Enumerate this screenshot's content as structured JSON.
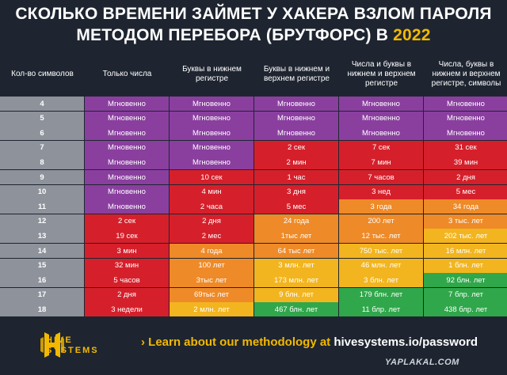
{
  "title": {
    "line1": "СКОЛЬКО ВРЕМЕНИ ЗАЙМЕТ У ХАКЕРА ВЗЛОМ ПАРОЛЯ",
    "line2_prefix": "МЕТОДОМ ПЕРЕБОРА (БРУТФОРС) В ",
    "year": "2022"
  },
  "headers": [
    "Кол-во символов",
    "Только числа",
    "Буквы в нижнем регистре",
    "Буквы в нижнем и верхнем регистре",
    "Числа и буквы в нижнем и верхнем регистре",
    "Числа, буквы в нижнем и верхнем регистре, символы"
  ],
  "colors": {
    "purple": "#8a3f9f",
    "red": "#d5202b",
    "orange": "#ee8a28",
    "yellow": "#f2b520",
    "green": "#2fa74a",
    "count_cell": "#8e929b",
    "background": "#1e2530",
    "accent": "#f3b800"
  },
  "rows": [
    {
      "count": "4",
      "cells": [
        [
          "Мгновенно",
          "p"
        ],
        [
          "Мгновенно",
          "p"
        ],
        [
          "Мгновенно",
          "p"
        ],
        [
          "Мгновенно",
          "p"
        ],
        [
          "Мгновенно",
          "p"
        ]
      ]
    },
    {
      "count": "5",
      "cells": [
        [
          "Мгновенно",
          "p"
        ],
        [
          "Мгновенно",
          "p"
        ],
        [
          "Мгновенно",
          "p"
        ],
        [
          "Мгновенно",
          "p"
        ],
        [
          "Мгновенно",
          "p"
        ]
      ]
    },
    {
      "count": "6",
      "cells": [
        [
          "Мгновенно",
          "p"
        ],
        [
          "Мгновенно",
          "p"
        ],
        [
          "Мгновенно",
          "p"
        ],
        [
          "Мгновенно",
          "p"
        ],
        [
          "Мгновенно",
          "p"
        ]
      ]
    },
    {
      "count": "7",
      "cells": [
        [
          "Мгновенно",
          "p"
        ],
        [
          "Мгновенно",
          "p"
        ],
        [
          "2 сек",
          "r"
        ],
        [
          "7 сек",
          "r"
        ],
        [
          "31 сек",
          "r"
        ]
      ]
    },
    {
      "count": "8",
      "cells": [
        [
          "Мгновенно",
          "p"
        ],
        [
          "Мгновенно",
          "p"
        ],
        [
          "2 мин",
          "r"
        ],
        [
          "7 мин",
          "r"
        ],
        [
          "39 мин",
          "r"
        ]
      ]
    },
    {
      "count": "9",
      "cells": [
        [
          "Мгновенно",
          "p"
        ],
        [
          "10 сек",
          "r"
        ],
        [
          "1 час",
          "r"
        ],
        [
          "7 часов",
          "r"
        ],
        [
          "2 дня",
          "r"
        ]
      ]
    },
    {
      "count": "10",
      "cells": [
        [
          "Мгновенно",
          "p"
        ],
        [
          "4 мин",
          "r"
        ],
        [
          "3 дня",
          "r"
        ],
        [
          "3 нед",
          "r"
        ],
        [
          "5 мес",
          "r"
        ]
      ]
    },
    {
      "count": "11",
      "cells": [
        [
          "Мгновенно",
          "p"
        ],
        [
          "2 часа",
          "r"
        ],
        [
          "5 мес",
          "r"
        ],
        [
          "3 года",
          "o"
        ],
        [
          "34 года",
          "o"
        ]
      ]
    },
    {
      "count": "12",
      "cells": [
        [
          "2 сек",
          "r"
        ],
        [
          "2 дня",
          "r"
        ],
        [
          "24 года",
          "o"
        ],
        [
          "200 лет",
          "o"
        ],
        [
          "3 тыс. лет",
          "o"
        ]
      ]
    },
    {
      "count": "13",
      "cells": [
        [
          "19 сек",
          "r"
        ],
        [
          "2 мес",
          "r"
        ],
        [
          "1тыс лет",
          "o"
        ],
        [
          "12 тыс. лет",
          "o"
        ],
        [
          "202 тыс. лет",
          "y"
        ]
      ]
    },
    {
      "count": "14",
      "cells": [
        [
          "3 мин",
          "r"
        ],
        [
          "4 года",
          "o"
        ],
        [
          "64 тыс лет",
          "o"
        ],
        [
          "750 тыс. лет",
          "y"
        ],
        [
          "16 млн. лет",
          "y"
        ]
      ]
    },
    {
      "count": "15",
      "cells": [
        [
          "32 мин",
          "r"
        ],
        [
          "100 лет",
          "o"
        ],
        [
          "3 млн. лет",
          "y"
        ],
        [
          "46 млн. лет",
          "y"
        ],
        [
          "1 блн. лет",
          "y"
        ]
      ]
    },
    {
      "count": "16",
      "cells": [
        [
          "5 часов",
          "r"
        ],
        [
          "3тыс лет",
          "o"
        ],
        [
          "173 млн. лет",
          "y"
        ],
        [
          "3 блн. лет",
          "y"
        ],
        [
          "92 блн. лет",
          "g"
        ]
      ]
    },
    {
      "count": "17",
      "cells": [
        [
          "2 дня",
          "r"
        ],
        [
          "69тыс лет",
          "o"
        ],
        [
          "9 блн. лет",
          "y"
        ],
        [
          "179 блн. лет",
          "g"
        ],
        [
          "7 блр. лет",
          "g"
        ]
      ]
    },
    {
      "count": "18",
      "cells": [
        [
          "3 недели",
          "r"
        ],
        [
          "2 млн. лет",
          "y"
        ],
        [
          "467 блн. лет",
          "g"
        ],
        [
          "11 блр. лет",
          "g"
        ],
        [
          "438 блр. лет",
          "g"
        ]
      ]
    }
  ],
  "footer": {
    "logo_line1": "HIVE",
    "logo_line2": "SYSTEMS",
    "logo_icon": "hive-logo-icon",
    "arrow": "›",
    "learn_text": "Learn about our methodology at ",
    "url": "hivesystems.io/password",
    "watermark": "YAPLAKAL.COM"
  }
}
